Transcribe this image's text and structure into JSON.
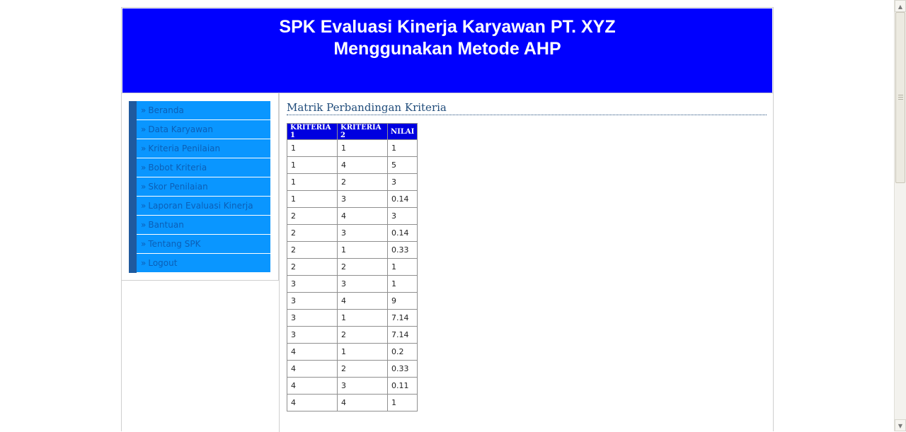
{
  "header": {
    "title_line1": "SPK Evaluasi Kinerja Karyawan PT. XYZ",
    "title_line2": "Menggunakan Metode AHP",
    "bg_color": "#0000ff"
  },
  "sidebar": {
    "chevron": "»",
    "items": [
      {
        "label": "Beranda"
      },
      {
        "label": "Data Karyawan"
      },
      {
        "label": "Kriteria Penilaian"
      },
      {
        "label": "Bobot Kriteria"
      },
      {
        "label": "Skor Penilaian"
      },
      {
        "label": "Laporan Evaluasi Kinerja"
      },
      {
        "label": "Bantuan"
      },
      {
        "label": "Tentang SPK"
      },
      {
        "label": "Logout"
      }
    ]
  },
  "main": {
    "section_title": "Matrik Perbandingan Kriteria",
    "table": {
      "headers": [
        "KRITERIA 1",
        "KRITERIA 2",
        "NILAI"
      ],
      "rows": [
        [
          "1",
          "1",
          "1"
        ],
        [
          "1",
          "4",
          "5"
        ],
        [
          "1",
          "2",
          "3"
        ],
        [
          "1",
          "3",
          "0.14"
        ],
        [
          "2",
          "4",
          "3"
        ],
        [
          "2",
          "3",
          "0.14"
        ],
        [
          "2",
          "1",
          "0.33"
        ],
        [
          "2",
          "2",
          "1"
        ],
        [
          "3",
          "3",
          "1"
        ],
        [
          "3",
          "4",
          "9"
        ],
        [
          "3",
          "1",
          "7.14"
        ],
        [
          "3",
          "2",
          "7.14"
        ],
        [
          "4",
          "1",
          "0.2"
        ],
        [
          "4",
          "2",
          "0.33"
        ],
        [
          "4",
          "3",
          "0.11"
        ],
        [
          "4",
          "4",
          "1"
        ]
      ]
    }
  },
  "scrollbar": {
    "up_icon": "▲",
    "down_icon": "▼"
  }
}
